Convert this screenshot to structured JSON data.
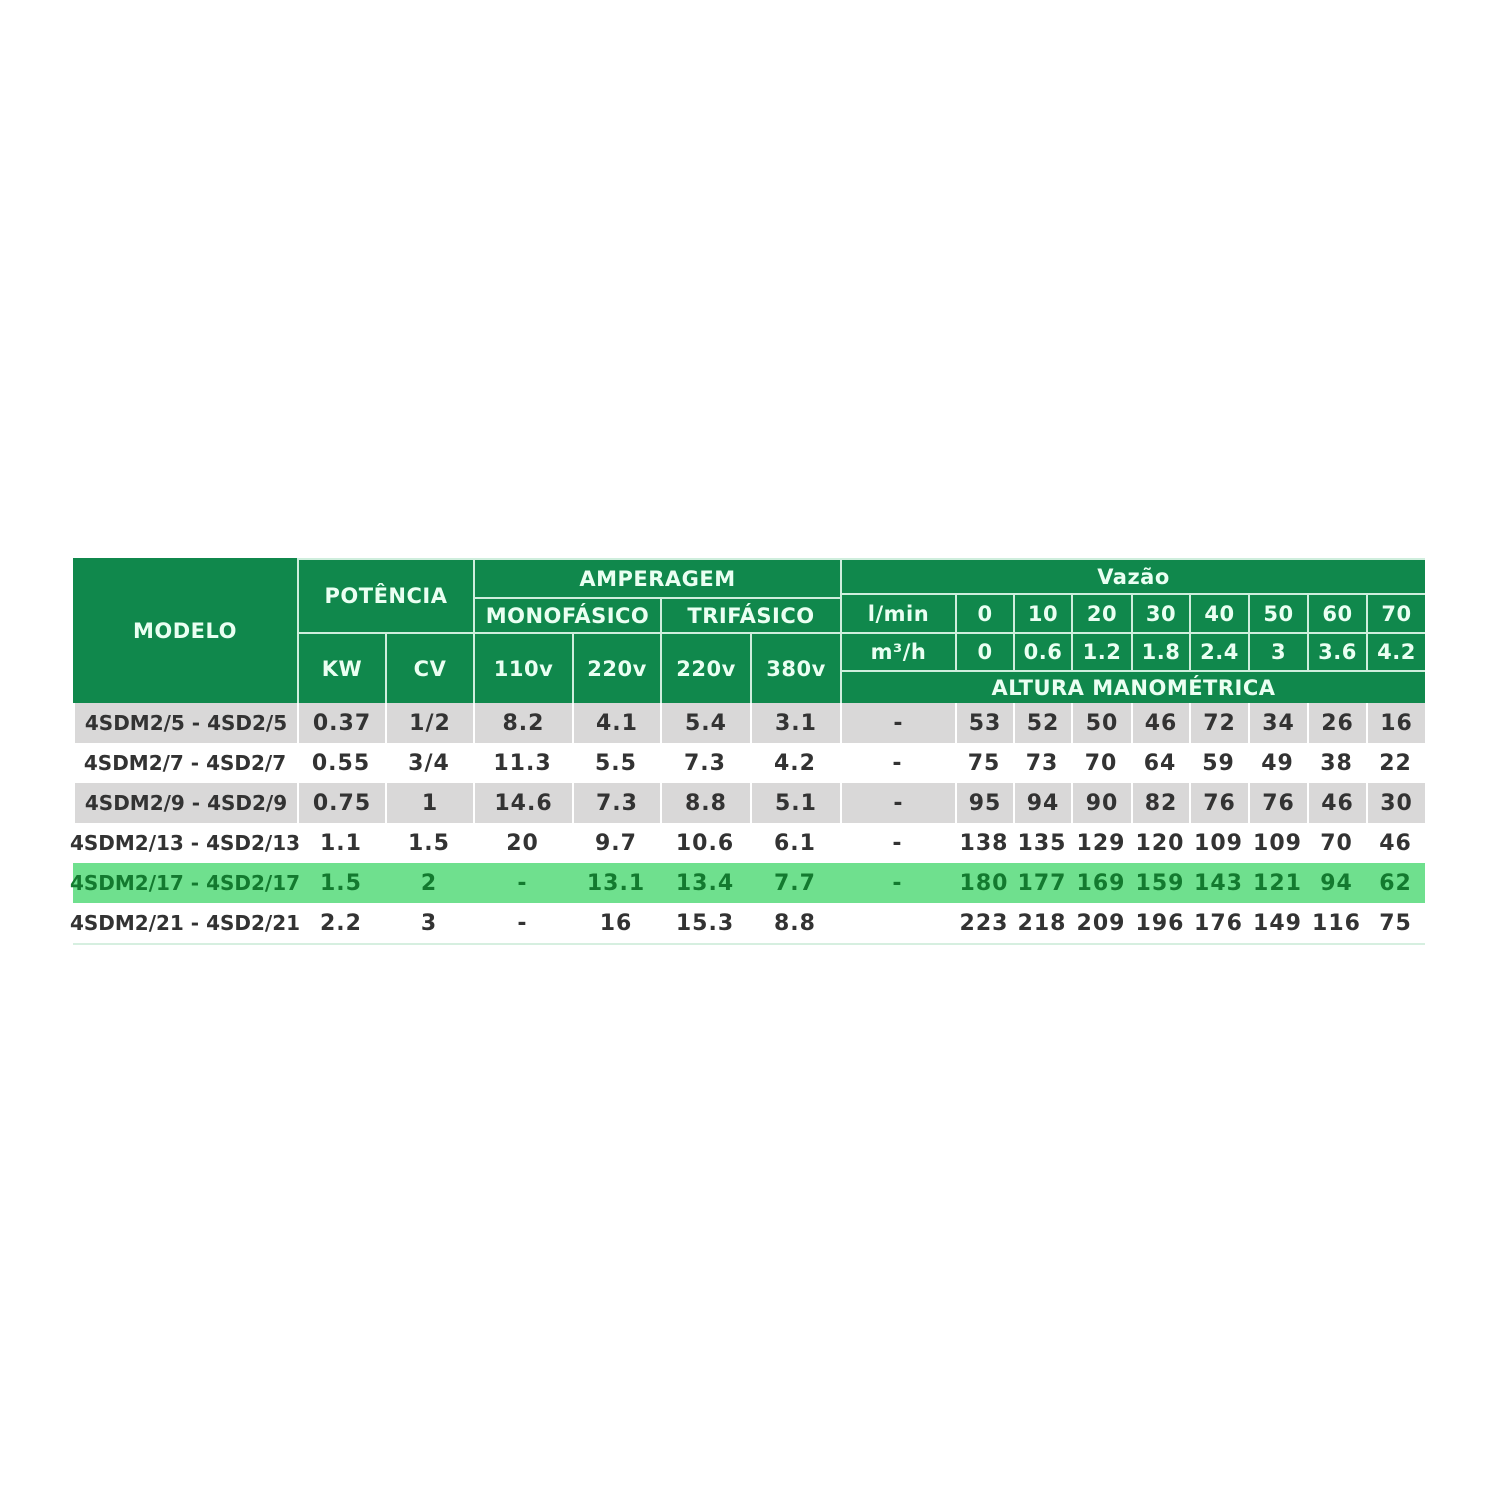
{
  "colors": {
    "header_bg": "#10884c",
    "header_text": "#eafff2",
    "gray_row": "#d9d8d8",
    "highlight_row": "#6fe08e",
    "highlight_text": "#137a2f"
  },
  "header": {
    "modelo": "MODELO",
    "potencia": "POTÊNCIA",
    "kw": "KW",
    "cv": "CV",
    "amperagem": "AMPERAGEM",
    "monofasico": "MONOFÁSICO",
    "trifasico": "TRIFÁSICO",
    "mono_110": "110v",
    "mono_220": "220v",
    "tri_220": "220v",
    "tri_380": "380v",
    "vazao": "Vazão",
    "lmin_label": "l/min",
    "m3h_label": "m³/h",
    "lmin": [
      "0",
      "10",
      "20",
      "30",
      "40",
      "50",
      "60",
      "70"
    ],
    "m3h": [
      "0",
      "0.6",
      "1.2",
      "1.8",
      "2.4",
      "3",
      "3.6",
      "4.2"
    ],
    "altura": "ALTURA MANOMÉTRICA"
  },
  "rows": [
    {
      "modelo": "4SDM2/5 - 4SD2/5",
      "kw": "0.37",
      "cv": "1/2",
      "mono_110": "8.2",
      "mono_220": "4.1",
      "tri_220": "5.4",
      "tri_380": "3.1",
      "dash": "-",
      "altura": [
        "53",
        "52",
        "50",
        "46",
        "72",
        "34",
        "26",
        "16"
      ],
      "style": "gray"
    },
    {
      "modelo": "4SDM2/7 - 4SD2/7",
      "kw": "0.55",
      "cv": "3/4",
      "mono_110": "11.3",
      "mono_220": "5.5",
      "tri_220": "7.3",
      "tri_380": "4.2",
      "dash": "-",
      "altura": [
        "75",
        "73",
        "70",
        "64",
        "59",
        "49",
        "38",
        "22"
      ],
      "style": "white"
    },
    {
      "modelo": "4SDM2/9 - 4SD2/9",
      "kw": "0.75",
      "cv": "1",
      "mono_110": "14.6",
      "mono_220": "7.3",
      "tri_220": "8.8",
      "tri_380": "5.1",
      "dash": "-",
      "altura": [
        "95",
        "94",
        "90",
        "82",
        "76",
        "76",
        "46",
        "30"
      ],
      "style": "gray"
    },
    {
      "modelo": "4SDM2/13 - 4SD2/13",
      "kw": "1.1",
      "cv": "1.5",
      "mono_110": "20",
      "mono_220": "9.7",
      "tri_220": "10.6",
      "tri_380": "6.1",
      "dash": "-",
      "altura": [
        "138",
        "135",
        "129",
        "120",
        "109",
        "109",
        "70",
        "46"
      ],
      "style": "white"
    },
    {
      "modelo": "4SDM2/17 - 4SD2/17",
      "kw": "1.5",
      "cv": "2",
      "mono_110": "-",
      "mono_220": "13.1",
      "tri_220": "13.4",
      "tri_380": "7.7",
      "dash": "-",
      "altura": [
        "180",
        "177",
        "169",
        "159",
        "143",
        "121",
        "94",
        "62"
      ],
      "style": "highlight"
    },
    {
      "modelo": "4SDM2/21 - 4SD2/21",
      "kw": "2.2",
      "cv": "3",
      "mono_110": "-",
      "mono_220": "16",
      "tri_220": "15.3",
      "tri_380": "8.8",
      "dash": "",
      "altura": [
        "223",
        "218",
        "209",
        "196",
        "176",
        "149",
        "116",
        "75"
      ],
      "style": "white"
    }
  ]
}
